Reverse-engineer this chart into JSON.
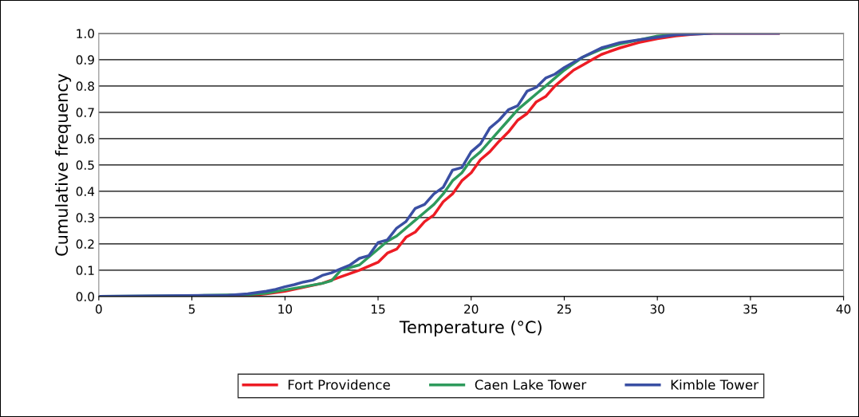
{
  "chart_data": {
    "type": "line",
    "xlabel": "Temperature (°C)",
    "ylabel": "Cumulative frequency",
    "xlim": [
      0,
      40
    ],
    "xticks": [
      0,
      5,
      10,
      15,
      20,
      25,
      30,
      35,
      40
    ],
    "ylim": [
      0,
      1.0
    ],
    "yticks": [
      {
        "value": 0,
        "label": "0.0"
      },
      0.1,
      0.2,
      0.3,
      0.4,
      0.5,
      0.6,
      0.7,
      0.8,
      0.9,
      {
        "value": 1.0,
        "label": "1.0"
      }
    ],
    "grid": "y",
    "legend": "bottom",
    "marker": "none",
    "line_style": "solid",
    "series": [
      {
        "name": "Fort Providence",
        "color": "#ed1c24",
        "x": [
          7,
          8,
          9,
          10,
          11,
          12,
          13,
          14,
          14.5,
          15,
          15.5,
          16,
          16.5,
          17,
          17.5,
          18,
          18.5,
          19,
          19.5,
          20,
          20.5,
          21,
          21.5,
          22,
          22.5,
          23,
          23.5,
          24,
          24.5,
          25,
          25.5,
          26,
          26.5,
          27,
          28,
          29,
          30,
          31,
          32,
          33,
          36.5
        ],
        "values": [
          0.005,
          0.003,
          0.01,
          0.02,
          0.035,
          0.05,
          0.075,
          0.1,
          0.115,
          0.13,
          0.165,
          0.18,
          0.225,
          0.245,
          0.285,
          0.31,
          0.36,
          0.39,
          0.44,
          0.47,
          0.52,
          0.55,
          0.59,
          0.625,
          0.67,
          0.695,
          0.74,
          0.76,
          0.8,
          0.83,
          0.86,
          0.88,
          0.9,
          0.92,
          0.945,
          0.965,
          0.98,
          0.99,
          0.997,
          1.0,
          1.0
        ]
      },
      {
        "name": "Caen Lake Tower",
        "color": "#2e9a5c",
        "x": [
          0,
          5,
          8,
          9,
          10,
          11,
          12,
          12.5,
          13,
          14,
          15,
          15.5,
          16,
          16.5,
          17,
          17.5,
          18,
          18.5,
          19,
          19.5,
          20,
          20.5,
          21,
          21.5,
          22,
          22.5,
          23,
          23.5,
          24,
          24.5,
          25,
          25.5,
          26,
          27,
          28,
          29,
          30,
          31,
          32,
          32.5
        ],
        "values": [
          0,
          0.003,
          0.007,
          0.012,
          0.025,
          0.037,
          0.05,
          0.06,
          0.1,
          0.12,
          0.18,
          0.21,
          0.23,
          0.26,
          0.29,
          0.32,
          0.35,
          0.39,
          0.44,
          0.47,
          0.52,
          0.55,
          0.59,
          0.63,
          0.67,
          0.71,
          0.74,
          0.77,
          0.8,
          0.83,
          0.86,
          0.885,
          0.91,
          0.94,
          0.96,
          0.975,
          0.99,
          0.995,
          1.0,
          1.0
        ]
      },
      {
        "name": "Kimble Tower",
        "color": "#3a4fa3",
        "x": [
          0,
          7,
          8,
          9,
          9.5,
          10,
          10.5,
          11,
          11.5,
          12,
          12.5,
          13,
          13.5,
          14,
          14.5,
          15,
          15.5,
          16,
          16.5,
          17,
          17.5,
          18,
          18.5,
          19,
          19.5,
          20,
          20.5,
          21,
          21.5,
          22,
          22.5,
          23,
          23.5,
          24,
          24.5,
          25,
          26,
          27,
          28,
          29,
          30,
          31,
          32,
          33,
          36.5
        ],
        "values": [
          0,
          0.005,
          0.01,
          0.02,
          0.027,
          0.037,
          0.045,
          0.055,
          0.062,
          0.08,
          0.09,
          0.105,
          0.12,
          0.145,
          0.155,
          0.205,
          0.215,
          0.26,
          0.285,
          0.335,
          0.35,
          0.39,
          0.415,
          0.48,
          0.49,
          0.55,
          0.58,
          0.64,
          0.67,
          0.71,
          0.725,
          0.78,
          0.795,
          0.83,
          0.845,
          0.87,
          0.91,
          0.945,
          0.965,
          0.975,
          0.985,
          0.995,
          0.997,
          1.0,
          1.0
        ]
      }
    ]
  }
}
